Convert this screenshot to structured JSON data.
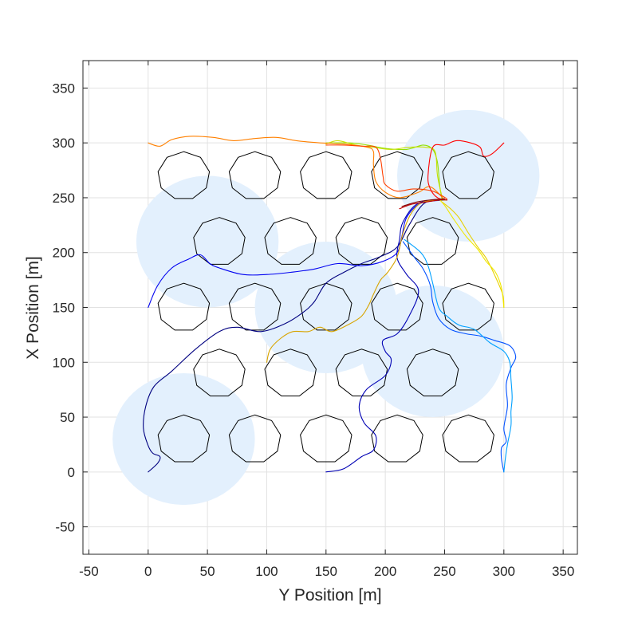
{
  "chart_data": {
    "type": "line",
    "title": "",
    "xlabel": "Y Position [m]",
    "ylabel": "X Position [m]",
    "xlim": [
      -55,
      362
    ],
    "ylim": [
      -75,
      375
    ],
    "xticks": [
      -50,
      0,
      50,
      100,
      150,
      200,
      250,
      300,
      350
    ],
    "yticks": [
      -50,
      0,
      50,
      100,
      150,
      200,
      250,
      300,
      350
    ],
    "grid": true,
    "legend": "none",
    "coverage_zones": {
      "color": "#e3f0fd",
      "circles": [
        {
          "cx": 30,
          "cy": 30,
          "r": 60
        },
        {
          "cx": 50,
          "cy": 210,
          "r": 60
        },
        {
          "cx": 150,
          "cy": 150,
          "r": 60
        },
        {
          "cx": 240,
          "cy": 110,
          "r": 60
        },
        {
          "cx": 270,
          "cy": 270,
          "r": 60
        }
      ]
    },
    "obstacles": {
      "color": "#000000",
      "sides": 9,
      "radius": 22,
      "centers": [
        [
          30,
          270
        ],
        [
          90,
          270
        ],
        [
          150,
          270
        ],
        [
          210,
          270
        ],
        [
          270,
          270
        ],
        [
          60,
          210
        ],
        [
          120,
          210
        ],
        [
          180,
          210
        ],
        [
          240,
          210
        ],
        [
          30,
          150
        ],
        [
          90,
          150
        ],
        [
          150,
          150
        ],
        [
          210,
          150
        ],
        [
          270,
          150
        ],
        [
          60,
          90
        ],
        [
          120,
          90
        ],
        [
          180,
          90
        ],
        [
          240,
          90
        ],
        [
          30,
          30
        ],
        [
          90,
          30
        ],
        [
          150,
          30
        ],
        [
          210,
          30
        ],
        [
          270,
          30
        ]
      ]
    },
    "series": [
      {
        "color": "#000080",
        "points": [
          [
            0,
            0
          ],
          [
            8,
            8
          ],
          [
            10,
            14
          ],
          [
            4,
            17
          ],
          [
            0,
            24
          ],
          [
            -4,
            40
          ],
          [
            -2,
            60
          ],
          [
            5,
            78
          ],
          [
            20,
            92
          ],
          [
            40,
            112
          ],
          [
            60,
            128
          ],
          [
            75,
            132
          ],
          [
            95,
            128
          ],
          [
            115,
            135
          ],
          [
            130,
            145
          ],
          [
            140,
            155
          ],
          [
            150,
            172
          ],
          [
            165,
            182
          ],
          [
            180,
            190
          ],
          [
            195,
            196
          ],
          [
            210,
            205
          ],
          [
            220,
            225
          ],
          [
            233,
            245
          ],
          [
            250,
            248
          ]
        ]
      },
      {
        "color": "#0000b4",
        "points": [
          [
            150,
            0
          ],
          [
            165,
            3
          ],
          [
            180,
            14
          ],
          [
            190,
            20
          ],
          [
            192,
            33
          ],
          [
            182,
            45
          ],
          [
            178,
            60
          ],
          [
            184,
            75
          ],
          [
            200,
            88
          ],
          [
            205,
            102
          ],
          [
            200,
            110
          ],
          [
            198,
            120
          ],
          [
            210,
            126
          ],
          [
            220,
            142
          ],
          [
            228,
            165
          ],
          [
            218,
            180
          ],
          [
            210,
            195
          ],
          [
            212,
            212
          ],
          [
            215,
            228
          ],
          [
            228,
            245
          ],
          [
            252,
            248
          ]
        ]
      },
      {
        "color": "#0000f0",
        "points": [
          [
            0,
            150
          ],
          [
            8,
            170
          ],
          [
            20,
            186
          ],
          [
            34,
            194
          ],
          [
            44,
            198
          ],
          [
            52,
            190
          ],
          [
            60,
            186
          ],
          [
            80,
            180
          ],
          [
            100,
            180
          ],
          [
            120,
            182
          ],
          [
            140,
            185
          ],
          [
            160,
            190
          ],
          [
            180,
            188
          ],
          [
            198,
            192
          ],
          [
            210,
            200
          ],
          [
            214,
            215
          ],
          [
            218,
            232
          ],
          [
            230,
            245
          ],
          [
            252,
            248
          ]
        ]
      },
      {
        "color": "#0050ff",
        "points": [
          [
            215,
            210
          ],
          [
            225,
            195
          ],
          [
            232,
            185
          ],
          [
            238,
            170
          ],
          [
            240,
            155
          ],
          [
            245,
            140
          ],
          [
            255,
            130
          ],
          [
            268,
            126
          ],
          [
            280,
            124
          ],
          [
            292,
            120
          ],
          [
            305,
            115
          ],
          [
            310,
            105
          ],
          [
            306,
            95
          ],
          [
            302,
            80
          ],
          [
            303,
            60
          ],
          [
            300,
            40
          ],
          [
            302,
            28
          ],
          [
            298,
            22
          ],
          [
            298,
            12
          ],
          [
            300,
            0
          ]
        ]
      },
      {
        "color": "#00a0ff",
        "points": [
          [
            216,
            212
          ],
          [
            230,
            200
          ],
          [
            236,
            188
          ],
          [
            240,
            172
          ],
          [
            245,
            150
          ],
          [
            252,
            142
          ],
          [
            262,
            134
          ],
          [
            275,
            130
          ],
          [
            288,
            118
          ],
          [
            300,
            110
          ],
          [
            305,
            100
          ],
          [
            306,
            85
          ],
          [
            307,
            68
          ],
          [
            306,
            55
          ],
          [
            306,
            42
          ],
          [
            303,
            25
          ],
          [
            301,
            10
          ],
          [
            300,
            0
          ]
        ]
      },
      {
        "color": "#d8a400",
        "points": [
          [
            100,
            100
          ],
          [
            103,
            112
          ],
          [
            112,
            122
          ],
          [
            122,
            128
          ],
          [
            135,
            128
          ],
          [
            145,
            132
          ],
          [
            155,
            128
          ],
          [
            170,
            135
          ],
          [
            180,
            142
          ],
          [
            186,
            152
          ],
          [
            190,
            162
          ],
          [
            196,
            175
          ],
          [
            202,
            182
          ],
          [
            210,
            196
          ],
          [
            215,
            218
          ],
          [
            222,
            236
          ],
          [
            232,
            246
          ],
          [
            252,
            248
          ]
        ]
      },
      {
        "color": "#e8d000",
        "points": [
          [
            300,
            150
          ],
          [
            299,
            162
          ],
          [
            292,
            180
          ],
          [
            285,
            195
          ],
          [
            278,
            205
          ],
          [
            270,
            218
          ],
          [
            262,
            232
          ],
          [
            255,
            240
          ],
          [
            248,
            246
          ]
        ]
      },
      {
        "color": "#f0e800",
        "points": [
          [
            300,
            150
          ],
          [
            298,
            168
          ],
          [
            293,
            182
          ],
          [
            285,
            192
          ],
          [
            278,
            203
          ],
          [
            268,
            215
          ],
          [
            258,
            230
          ],
          [
            250,
            243
          ],
          [
            246,
            248
          ]
        ]
      },
      {
        "color": "#8fe000",
        "points": [
          [
            150,
            300
          ],
          [
            170,
            300
          ],
          [
            185,
            298
          ],
          [
            200,
            295
          ],
          [
            218,
            294
          ],
          [
            232,
            298
          ],
          [
            240,
            294
          ],
          [
            244,
            282
          ],
          [
            246,
            260
          ],
          [
            248,
            248
          ]
        ]
      },
      {
        "color": "#c8e000",
        "points": [
          [
            150,
            299
          ],
          [
            160,
            302
          ],
          [
            175,
            298
          ],
          [
            190,
            296
          ],
          [
            205,
            294
          ],
          [
            220,
            296
          ],
          [
            234,
            296
          ],
          [
            242,
            292
          ],
          [
            244,
            270
          ],
          [
            248,
            250
          ]
        ]
      },
      {
        "color": "#ff8000",
        "points": [
          [
            0,
            300
          ],
          [
            10,
            297
          ],
          [
            20,
            303
          ],
          [
            35,
            306
          ],
          [
            55,
            305
          ],
          [
            72,
            302
          ],
          [
            90,
            304
          ],
          [
            108,
            305
          ],
          [
            125,
            302
          ],
          [
            145,
            300
          ],
          [
            165,
            299
          ],
          [
            185,
            296
          ],
          [
            190,
            292
          ],
          [
            190,
            280
          ],
          [
            192,
            265
          ],
          [
            200,
            255
          ],
          [
            212,
            250
          ],
          [
            228,
            255
          ],
          [
            238,
            260
          ],
          [
            250,
            248
          ]
        ]
      },
      {
        "color": "#ff4000",
        "points": [
          [
            150,
            298
          ],
          [
            165,
            298
          ],
          [
            180,
            297
          ],
          [
            192,
            296
          ],
          [
            196,
            285
          ],
          [
            198,
            270
          ],
          [
            200,
            262
          ],
          [
            210,
            256
          ],
          [
            224,
            258
          ],
          [
            240,
            256
          ],
          [
            252,
            249
          ]
        ]
      },
      {
        "color": "#ff0000",
        "points": [
          [
            300,
            300
          ],
          [
            290,
            290
          ],
          [
            283,
            288
          ],
          [
            280,
            296
          ],
          [
            272,
            300
          ],
          [
            260,
            302
          ],
          [
            250,
            298
          ],
          [
            240,
            296
          ],
          [
            236,
            270
          ],
          [
            238,
            258
          ],
          [
            244,
            250
          ],
          [
            252,
            248
          ]
        ]
      },
      {
        "color": "#c00000",
        "points": [
          [
            212,
            240
          ],
          [
            222,
            244
          ],
          [
            234,
            246
          ],
          [
            246,
            248
          ],
          [
            252,
            248
          ]
        ]
      },
      {
        "color": "#800000",
        "points": [
          [
            214,
            242
          ],
          [
            226,
            246
          ],
          [
            238,
            248
          ],
          [
            250,
            249
          ]
        ]
      }
    ]
  }
}
